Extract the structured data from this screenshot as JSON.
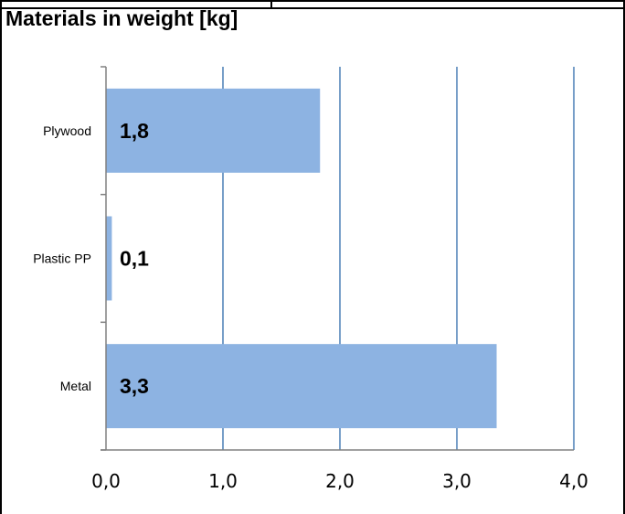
{
  "title": "Materials in weight [kg]",
  "chart_data": {
    "type": "bar",
    "orientation": "horizontal",
    "title": "Materials in weight [kg]",
    "categories": [
      "Plywood",
      "Plastic PP",
      "Metal"
    ],
    "values": [
      1.83,
      0.05,
      3.34
    ],
    "data_labels": [
      "1,8",
      "0,1",
      "3,3"
    ],
    "xlim": [
      0,
      4
    ],
    "x_ticks": [
      "0,0",
      "1,0",
      "2,0",
      "3,0",
      "4,0"
    ],
    "xlabel": "",
    "ylabel": "",
    "grid": "vertical",
    "legend": "none",
    "bar_color": "#8db3e2",
    "grid_color": "#4a7eb5"
  }
}
